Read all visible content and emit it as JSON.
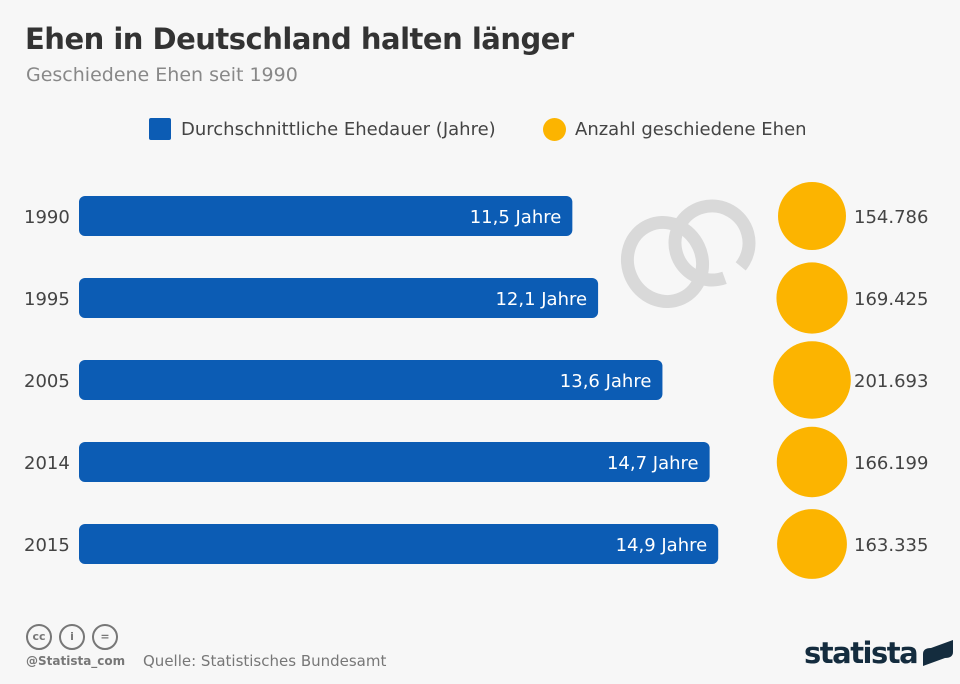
{
  "title": "Ehen in Deutschland halten länger",
  "subtitle": "Geschiedene Ehen seit 1990",
  "colors": {
    "bar": "#0c5cb4",
    "bubble": "#fcb400",
    "ring": "#d9d9d9"
  },
  "chart_data": {
    "type": "bar",
    "categories": [
      "1990",
      "1995",
      "2005",
      "2014",
      "2015"
    ],
    "series": [
      {
        "name": "Durchschnittliche Ehedauer (Jahre)",
        "values": [
          11.5,
          12.1,
          13.6,
          14.7,
          14.9
        ],
        "labels": [
          "11,5 Jahre",
          "12,1 Jahre",
          "13,6 Jahre",
          "14,7 Jahre",
          "14,9 Jahre"
        ]
      },
      {
        "name": "Anzahl geschiedene Ehen",
        "values": [
          154786,
          169425,
          201693,
          166199,
          163335
        ],
        "labels": [
          "154.786",
          "169.425",
          "201.693",
          "166.199",
          "163.335"
        ]
      }
    ],
    "legend": "top"
  },
  "footer": {
    "handle": "@Statista_com",
    "source": "Quelle: Statistisches Bundesamt",
    "logo": "statista",
    "cc_icons": [
      "cc",
      "by",
      "nd"
    ]
  }
}
